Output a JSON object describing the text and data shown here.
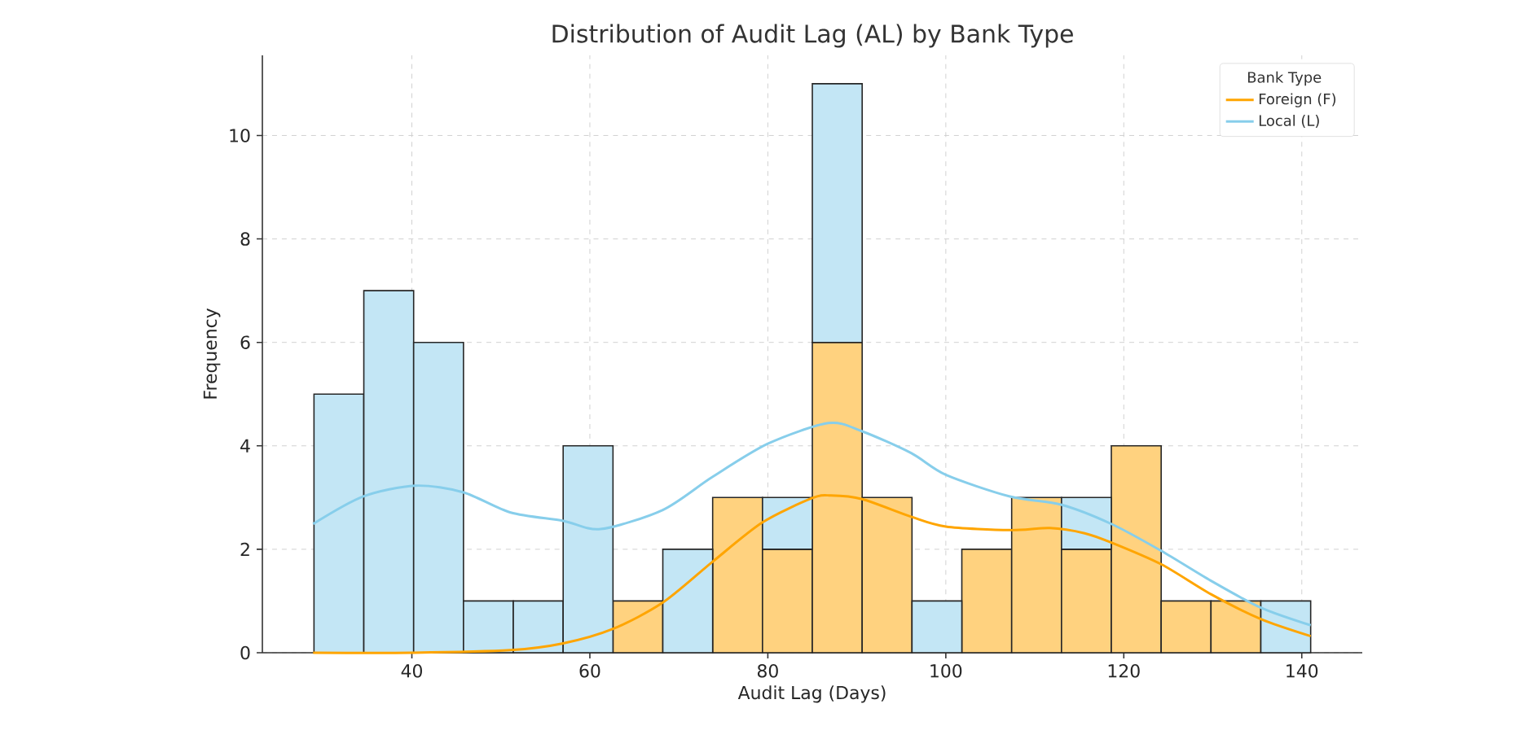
{
  "chart_data": {
    "type": "bar",
    "title": "Distribution of Audit Lag (AL) by Bank Type",
    "xlabel": "Audit Lag (Days)",
    "ylabel": "Frequency",
    "legend_title": "Bank Type",
    "x": [
      31.8,
      37.4,
      43,
      48.6,
      54.2,
      59.8,
      65.4,
      71,
      76.6,
      82.2,
      87.8,
      93.4,
      99,
      104.6,
      110.2,
      115.8,
      121.4,
      127,
      132.6,
      138.2
    ],
    "stacked": true,
    "series": [
      {
        "color": "#ffd27f",
        "values": [
          0,
          0,
          0,
          0,
          0,
          0,
          1,
          0,
          3,
          2,
          6,
          3,
          0,
          2,
          3,
          2,
          4,
          1,
          1,
          0
        ]
      },
      {
        "color": "#c3e6f5",
        "values": [
          5,
          7,
          6,
          1,
          1,
          4,
          0,
          2,
          0,
          1,
          5,
          0,
          1,
          0,
          0,
          1,
          0,
          0,
          0,
          1
        ]
      },
      {
        "type": "line",
        "name": "Foreign (F)",
        "color": "#ffa500",
        "x": [
          28.9,
          40,
          51.1,
          57,
          62.6,
          68.2,
          73.8,
          79.4,
          85,
          87.1,
          90.6,
          96.1,
          100,
          107.2,
          111.7,
          115.6,
          118.6,
          124.2,
          129.8,
          135.4,
          141
        ],
        "values": [
          0,
          0,
          0.05,
          0.18,
          0.46,
          0.97,
          1.76,
          2.52,
          2.99,
          3.04,
          2.97,
          2.63,
          2.44,
          2.37,
          2.41,
          2.31,
          2.13,
          1.71,
          1.13,
          0.65,
          0.32
        ]
      },
      {
        "type": "line",
        "name": "Local (L)",
        "color": "#87ceeb",
        "x": [
          28.9,
          34.5,
          40.4,
          45.8,
          51.1,
          57,
          61.2,
          68.2,
          73.7,
          80,
          86.8,
          90.6,
          96.1,
          100,
          107.2,
          113,
          118.6,
          124.2,
          129.8,
          135.4,
          141
        ],
        "values": [
          2.49,
          3.02,
          3.23,
          3.1,
          2.71,
          2.55,
          2.39,
          2.76,
          3.39,
          4.04,
          4.44,
          4.28,
          3.86,
          3.44,
          3.02,
          2.86,
          2.49,
          1.97,
          1.39,
          0.87,
          0.53
        ]
      }
    ],
    "xlim": [
      23.2,
      146.8
    ],
    "ylim": [
      0,
      11.55
    ],
    "xticks": [
      40,
      60,
      80,
      100,
      120,
      140
    ],
    "yticks": [
      0,
      2,
      4,
      6,
      8,
      10
    ],
    "grid": true,
    "legend": "top right"
  }
}
